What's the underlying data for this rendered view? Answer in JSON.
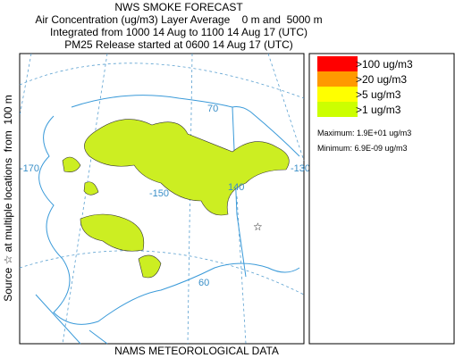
{
  "header": {
    "title": "NWS SMOKE FORECAST",
    "lines": [
      "Air Concentration (ug/m3) Layer Average    0 m and  5000 m",
      "Integrated from 1000 14 Aug to 1100 14 Aug 17 (UTC)",
      "PM25 Release started at 0600 14 Aug 17 (UTC)"
    ]
  },
  "side_label": "Source ☆ at multiple locations  from  100 m",
  "footer": "NAMS METEOROLOGICAL DATA",
  "map_labels": [
    "70",
    "-170",
    "-150",
    "140",
    "-130",
    "60"
  ],
  "legend": {
    "items": [
      {
        "label": ">100 ug/m3",
        "color": "#ff0000"
      },
      {
        "label": ">20 ug/m3",
        "color": "#ff9900"
      },
      {
        "label": ">5 ug/m3",
        "color": "#ffff00"
      },
      {
        "label": ">1 ug/m3",
        "color": "#ccff00"
      }
    ],
    "maximum": "Maximum: 1.9E+01 ug/m3",
    "minimum": "Minimum: 6.9E-09 ug/m3"
  }
}
